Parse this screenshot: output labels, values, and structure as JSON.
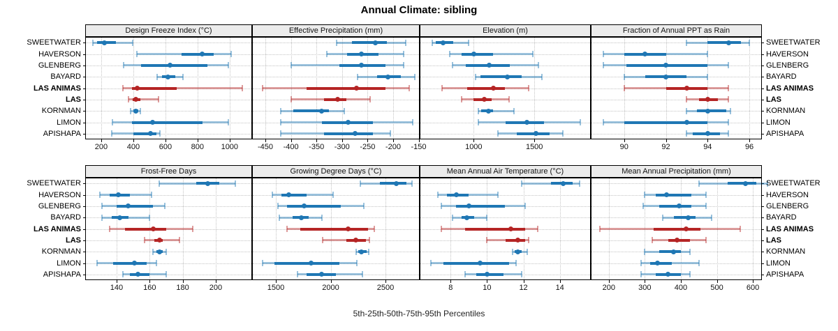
{
  "title": "Annual Climate: sibling",
  "caption": "5th-25th-50th-75th-95th Percentiles",
  "percentile_labels": [
    "5th",
    "25th",
    "50th",
    "75th",
    "95th"
  ],
  "colors": {
    "blue": "#1f77b4",
    "blue_soft": "rgba(31,119,180,0.45)",
    "red": "#b52525",
    "red_soft": "rgba(181,37,37,0.45)",
    "strip_bg": "#ececec",
    "grid": "#c3c3c3"
  },
  "sites": [
    {
      "name": "SWEETWATER",
      "highlight": false
    },
    {
      "name": "HAVERSON",
      "highlight": false
    },
    {
      "name": "GLENBERG",
      "highlight": false
    },
    {
      "name": "BAYARD",
      "highlight": false
    },
    {
      "name": "LAS ANIMAS",
      "highlight": true
    },
    {
      "name": "LAS",
      "highlight": true
    },
    {
      "name": "KORNMAN",
      "highlight": false
    },
    {
      "name": "LIMON",
      "highlight": false
    },
    {
      "name": "APISHAPA",
      "highlight": false
    }
  ],
  "chart_data": [
    {
      "type": "dotplot-interval",
      "title": "Design Freeze Index (°C)",
      "row": 0,
      "col": 0,
      "xlim": [
        100,
        1140
      ],
      "ticks": [
        200,
        400,
        600,
        800,
        1000
      ],
      "series": [
        [
          150,
          175,
          220,
          290,
          395
        ],
        [
          420,
          700,
          830,
          900,
          1010
        ],
        [
          340,
          450,
          630,
          860,
          990
        ],
        [
          550,
          580,
          615,
          660,
          710
        ],
        [
          335,
          390,
          425,
          670,
          1080
        ],
        [
          370,
          395,
          415,
          445,
          555
        ],
        [
          385,
          400,
          415,
          430,
          445
        ],
        [
          270,
          390,
          520,
          830,
          990
        ],
        [
          265,
          400,
          505,
          545,
          565
        ]
      ]
    },
    {
      "type": "dotplot-interval",
      "title": "Effective Precipitation (mm)",
      "row": 0,
      "col": 1,
      "xlim": [
        -476,
        -148
      ],
      "ticks": [
        -450,
        -400,
        -350,
        -300,
        -250,
        -200,
        -150
      ],
      "series": [
        [
          -310,
          -280,
          -235,
          -212,
          -175
        ],
        [
          -330,
          -290,
          -262,
          -228,
          -180
        ],
        [
          -400,
          -305,
          -262,
          -215,
          -180
        ],
        [
          -270,
          -232,
          -210,
          -185,
          -158
        ],
        [
          -455,
          -370,
          -272,
          -215,
          -168
        ],
        [
          -400,
          -335,
          -308,
          -292,
          -245
        ],
        [
          -420,
          -395,
          -340,
          -325,
          -295
        ],
        [
          -420,
          -340,
          -288,
          -240,
          -162
        ],
        [
          -420,
          -335,
          -275,
          -240,
          -205
        ]
      ]
    },
    {
      "type": "dotplot-interval",
      "title": "Elevation (m)",
      "row": 0,
      "col": 2,
      "xlim": [
        555,
        1965
      ],
      "ticks": [
        1000,
        1500
      ],
      "series": [
        [
          660,
          690,
          745,
          830,
          960
        ],
        [
          800,
          900,
          1000,
          1160,
          1490
        ],
        [
          825,
          935,
          1130,
          1300,
          1535
        ],
        [
          1015,
          1055,
          1280,
          1395,
          1560
        ],
        [
          740,
          945,
          1160,
          1260,
          1455
        ],
        [
          900,
          1000,
          1085,
          1145,
          1290
        ],
        [
          1040,
          1060,
          1120,
          1160,
          1330
        ],
        [
          1040,
          1260,
          1440,
          1580,
          1880
        ],
        [
          1200,
          1355,
          1515,
          1625,
          1735
        ]
      ]
    },
    {
      "type": "dotplot-interval",
      "title": "Fraction of Annual PPT as Rain",
      "row": 0,
      "col": 3,
      "xlim": [
        88.4,
        96.6
      ],
      "ticks": [
        90,
        92,
        94,
        96
      ],
      "series": [
        [
          93,
          94,
          95,
          95.6,
          96
        ],
        [
          89,
          90,
          91,
          92,
          94
        ],
        [
          89,
          90.1,
          92,
          94,
          95
        ],
        [
          90,
          91,
          92,
          93,
          94
        ],
        [
          90,
          92,
          93,
          94,
          95
        ],
        [
          93,
          93.6,
          94,
          94.5,
          95
        ],
        [
          93,
          93.5,
          94,
          94.9,
          95.1
        ],
        [
          89,
          90,
          93,
          94,
          95
        ],
        [
          93,
          93.3,
          94,
          94.6,
          95
        ]
      ]
    },
    {
      "type": "dotplot-interval",
      "title": "Frost-Free Days",
      "row": 1,
      "col": 0,
      "xlim": [
        121,
        222
      ],
      "ticks": [
        140,
        160,
        180,
        200
      ],
      "series": [
        [
          166,
          188,
          195,
          202,
          212
        ],
        [
          130,
          136,
          141,
          148,
          161
        ],
        [
          131,
          140,
          147,
          162,
          169
        ],
        [
          131,
          137,
          142,
          147,
          160
        ],
        [
          136,
          145,
          162,
          170,
          186
        ],
        [
          157,
          163,
          166,
          168,
          178
        ],
        [
          162,
          164,
          166,
          168,
          170
        ],
        [
          128,
          138,
          151,
          158,
          164
        ],
        [
          144,
          148,
          153,
          160,
          170
        ]
      ]
    },
    {
      "type": "dotplot-interval",
      "title": "Growing Degree Days (°C)",
      "row": 1,
      "col": 1,
      "xlim": [
        1283,
        2812
      ],
      "ticks": [
        1500,
        2000,
        2500
      ],
      "series": [
        [
          2270,
          2450,
          2600,
          2690,
          2745
        ],
        [
          1470,
          1550,
          1620,
          1780,
          2020
        ],
        [
          1520,
          1600,
          1760,
          2090,
          2300
        ],
        [
          1530,
          1650,
          1730,
          1800,
          1920
        ],
        [
          1600,
          1720,
          2160,
          2340,
          2400
        ],
        [
          1925,
          2140,
          2230,
          2320,
          2355
        ],
        [
          2230,
          2250,
          2280,
          2330,
          2350
        ],
        [
          1380,
          1490,
          1820,
          2080,
          2240
        ],
        [
          1700,
          1780,
          1920,
          2050,
          2290
        ]
      ]
    },
    {
      "type": "dotplot-interval",
      "title": "Mean Annual Air Temperature (°C)",
      "row": 1,
      "col": 2,
      "xlim": [
        6.3,
        15.7
      ],
      "ticks": [
        8,
        10,
        12,
        14
      ],
      "series": [
        [
          11.9,
          13.5,
          14.2,
          14.7,
          15.1
        ],
        [
          7.3,
          7.8,
          8.3,
          9.0,
          10.6
        ],
        [
          7.5,
          8.3,
          9.0,
          11.0,
          12.1
        ],
        [
          8.1,
          8.6,
          8.9,
          9.3,
          10.0
        ],
        [
          7.5,
          8.8,
          11.3,
          12.1,
          12.8
        ],
        [
          10.0,
          11.0,
          11.7,
          12.1,
          12.3
        ],
        [
          11.4,
          11.5,
          11.7,
          11.9,
          12.2
        ],
        [
          6.9,
          7.6,
          9.6,
          11.2,
          11.6
        ],
        [
          8.8,
          9.4,
          10.0,
          10.9,
          11.9
        ]
      ]
    },
    {
      "type": "dotplot-interval",
      "title": "Mean Annual Precipitation (mm)",
      "row": 1,
      "col": 3,
      "xlim": [
        150,
        625
      ],
      "ticks": [
        200,
        300,
        400,
        500,
        600
      ],
      "series": [
        [
          450,
          530,
          580,
          610,
          640
        ],
        [
          300,
          330,
          360,
          430,
          470
        ],
        [
          295,
          340,
          395,
          430,
          470
        ],
        [
          350,
          380,
          420,
          440,
          485
        ],
        [
          175,
          325,
          415,
          455,
          565
        ],
        [
          320,
          365,
          390,
          425,
          470
        ],
        [
          300,
          340,
          380,
          400,
          425
        ],
        [
          290,
          315,
          335,
          375,
          450
        ],
        [
          290,
          330,
          365,
          400,
          425
        ]
      ]
    }
  ]
}
